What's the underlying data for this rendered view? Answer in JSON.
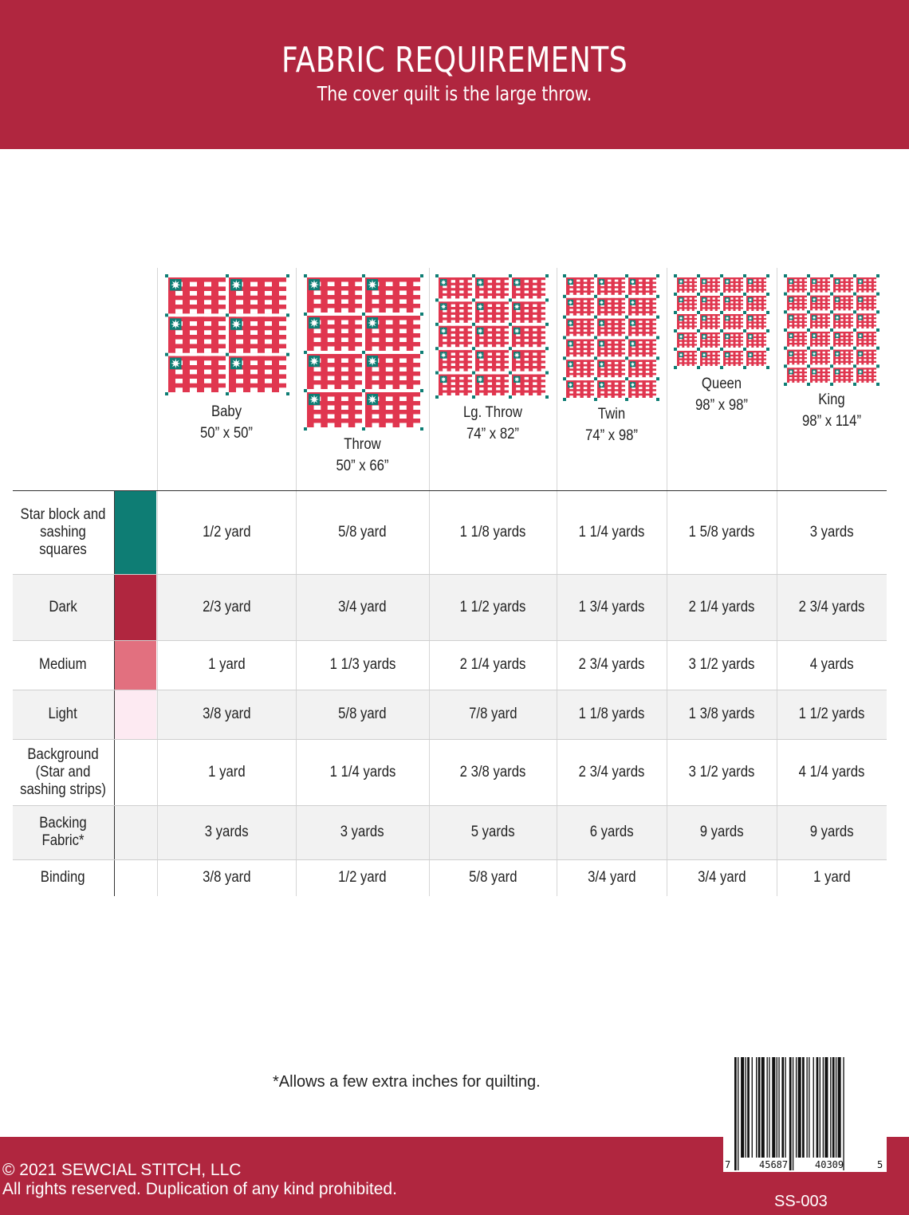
{
  "header": {
    "title": "FABRIC REQUIREMENTS",
    "subtitle": "The cover quilt is the large throw."
  },
  "colors": {
    "brand": "#b0263f",
    "star_teal": "#0e7d74",
    "dark": "#b0263f",
    "medium": "#e2707f",
    "light": "#fdeaf2",
    "quilt_red": "#e0364f",
    "quilt_pink": "#f3b9c4"
  },
  "sizes": [
    {
      "name": "Baby",
      "dims": "50” x 50”",
      "blocks_cols": 2,
      "blocks_rows": 3
    },
    {
      "name": "Throw",
      "dims": "50” x 66”",
      "blocks_cols": 2,
      "blocks_rows": 4
    },
    {
      "name": "Lg. Throw",
      "dims": "74” x 82”",
      "blocks_cols": 3,
      "blocks_rows": 5
    },
    {
      "name": "Twin",
      "dims": "74” x 98”",
      "blocks_cols": 3,
      "blocks_rows": 6
    },
    {
      "name": "Queen",
      "dims": "98” x 98”",
      "blocks_cols": 4,
      "blocks_rows": 5
    },
    {
      "name": "King",
      "dims": "98” x 114”",
      "blocks_cols": 4,
      "blocks_rows": 6
    }
  ],
  "rows": [
    {
      "label": "Star block and sashing squares",
      "swatch": "star_teal",
      "values": [
        "1/2 yard",
        "5/8 yard",
        "1 1/8 yards",
        "1 1/4 yards",
        "1 5/8 yards",
        "3 yards"
      ]
    },
    {
      "label": "Dark",
      "swatch": "dark",
      "values": [
        "2/3 yard",
        "3/4 yard",
        "1 1/2 yards",
        "1 3/4 yards",
        "2 1/4 yards",
        "2 3/4 yards"
      ]
    },
    {
      "label": "Medium",
      "swatch": "medium",
      "values": [
        "1 yard",
        "1 1/3 yards",
        "2 1/4 yards",
        "2 3/4 yards",
        "3 1/2 yards",
        "4 yards"
      ]
    },
    {
      "label": "Light",
      "swatch": "light",
      "values": [
        "3/8 yard",
        "5/8 yard",
        "7/8 yard",
        "1 1/8 yards",
        "1 3/8 yards",
        "1 1/2 yards"
      ]
    },
    {
      "label": "Background (Star and sashing strips)",
      "swatch": "",
      "values": [
        "1 yard",
        "1 1/4 yards",
        "2 3/8 yards",
        "2 3/4 yards",
        "3 1/2 yards",
        "4 1/4 yards"
      ]
    },
    {
      "label": "Backing Fabric*",
      "swatch": "",
      "values": [
        "3 yards",
        "3 yards",
        "5 yards",
        "6 yards",
        "9 yards",
        "9 yards"
      ]
    },
    {
      "label": "Binding",
      "swatch": "",
      "values": [
        "3/8 yard",
        "1/2 yard",
        "5/8 yard",
        "3/4 yard",
        "3/4 yard",
        "1 yard"
      ]
    }
  ],
  "footnote": "*Allows a few extra inches for quilting.",
  "footer": {
    "copyright": "© 2021 SEWCIAL STITCH, LLC",
    "rights": "All rights reserved.  Duplication of any kind prohibited.",
    "code": "SS-003"
  },
  "barcode": {
    "first": "7",
    "left_group": "45687",
    "right_group": "40309",
    "last": "5"
  }
}
